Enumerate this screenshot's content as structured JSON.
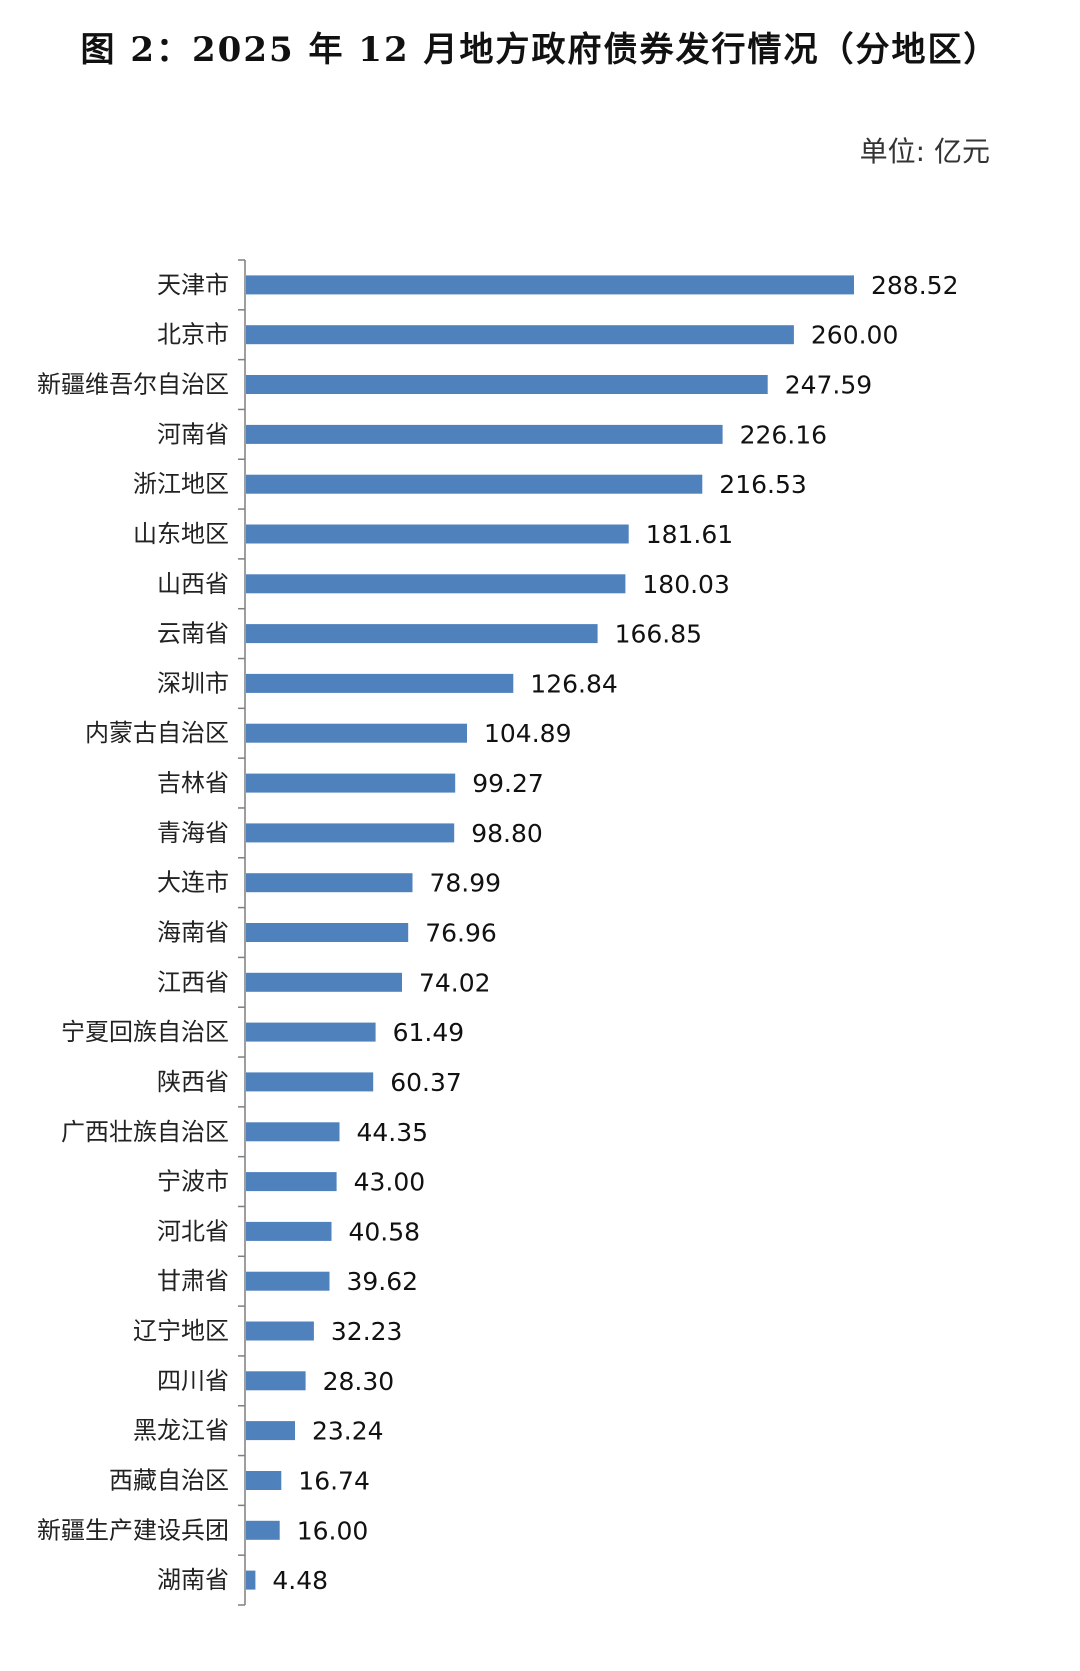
{
  "chart_data": {
    "type": "bar",
    "orientation": "horizontal",
    "title": "图 2：2025 年 12 月地方政府债券发行情况（分地区）",
    "unit": "单位: 亿元",
    "xlabel": "",
    "ylabel": "",
    "bar_color": "#4f81bd",
    "grid": false,
    "legend": "none",
    "xlim": [
      0,
      310
    ],
    "categories": [
      "天津市",
      "北京市",
      "新疆维吾尔自治区",
      "河南省",
      "浙江地区",
      "山东地区",
      "山西省",
      "云南省",
      "深圳市",
      "内蒙古自治区",
      "吉林省",
      "青海省",
      "大连市",
      "海南省",
      "江西省",
      "宁夏回族自治区",
      "陕西省",
      "广西壮族自治区",
      "宁波市",
      "河北省",
      "甘肃省",
      "辽宁地区",
      "四川省",
      "黑龙江省",
      "西藏自治区",
      "新疆生产建设兵团",
      "湖南省"
    ],
    "values": [
      288.52,
      260.0,
      247.59,
      226.16,
      216.53,
      181.61,
      180.03,
      166.85,
      126.84,
      104.89,
      99.27,
      98.8,
      78.99,
      76.96,
      74.02,
      61.49,
      60.37,
      44.35,
      43.0,
      40.58,
      39.62,
      32.23,
      28.3,
      23.24,
      16.74,
      16.0,
      4.48
    ],
    "value_labels": [
      "288.52",
      "260.00",
      "247.59",
      "226.16",
      "216.53",
      "181.61",
      "180.03",
      "166.85",
      "126.84",
      "104.89",
      "99.27",
      "98.80",
      "78.99",
      "76.96",
      "74.02",
      "61.49",
      "60.37",
      "44.35",
      "43.00",
      "40.58",
      "39.62",
      "32.23",
      "28.30",
      "23.24",
      "16.74",
      "16.00",
      "4.48"
    ]
  }
}
